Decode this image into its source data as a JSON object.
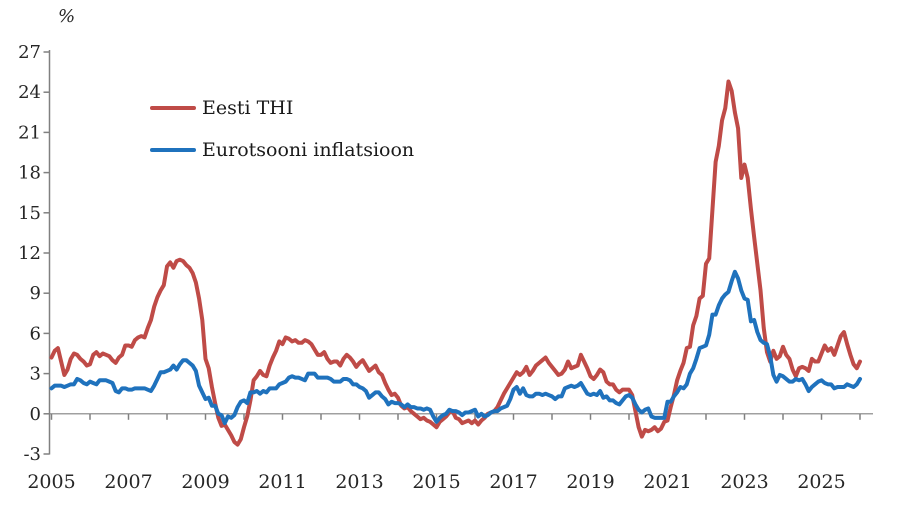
{
  "chart_data": {
    "type": "line",
    "title": "",
    "ylabel": "%",
    "xlabel": "",
    "ylim": [
      -3,
      27
    ],
    "ytick_step": 3,
    "yticks": [
      27,
      24,
      21,
      18,
      15,
      12,
      9,
      6,
      3,
      0,
      -3
    ],
    "xtick_labels": [
      2005,
      2007,
      2009,
      2011,
      2013,
      2015,
      2017,
      2019,
      2021,
      2023,
      2025
    ],
    "x_minor_tick_years": [
      2005,
      2006,
      2007,
      2008,
      2009,
      2010,
      2011,
      2012,
      2013,
      2014,
      2015,
      2016,
      2017,
      2018,
      2019,
      2020,
      2021,
      2022,
      2023,
      2024,
      2025,
      2026
    ],
    "frequency": "monthly",
    "start": "2005-01",
    "end": "2026-01",
    "grid": "zero-line-only",
    "legend_position": "top-left-inside",
    "axis_color": "#808080",
    "text_color": "#262626",
    "series": [
      {
        "name": "Eesti THI",
        "color": "#bf4b47",
        "values": [
          4.2,
          4.7,
          4.9,
          3.9,
          2.9,
          3.3,
          4.1,
          4.5,
          4.4,
          4.1,
          3.9,
          3.6,
          3.7,
          4.4,
          4.6,
          4.3,
          4.5,
          4.4,
          4.3,
          4.0,
          3.8,
          4.2,
          4.4,
          5.1,
          5.1,
          5.0,
          5.5,
          5.7,
          5.8,
          5.7,
          6.4,
          7.0,
          8.0,
          8.7,
          9.2,
          9.6,
          11.0,
          11.3,
          10.9,
          11.4,
          11.5,
          11.4,
          11.1,
          10.9,
          10.5,
          9.8,
          8.6,
          7.0,
          4.1,
          3.4,
          2.0,
          0.8,
          -0.3,
          -0.9,
          -0.8,
          -1.2,
          -1.6,
          -2.1,
          -2.3,
          -1.9,
          -1.0,
          -0.2,
          1.0,
          2.5,
          2.8,
          3.2,
          2.9,
          2.8,
          3.6,
          4.2,
          4.7,
          5.4,
          5.2,
          5.7,
          5.6,
          5.4,
          5.5,
          5.3,
          5.3,
          5.5,
          5.4,
          5.2,
          4.8,
          4.4,
          4.4,
          4.6,
          4.1,
          3.8,
          3.9,
          3.9,
          3.6,
          4.1,
          4.4,
          4.2,
          3.9,
          3.5,
          3.8,
          4.0,
          3.6,
          3.2,
          3.4,
          3.6,
          3.1,
          2.9,
          2.3,
          1.8,
          1.4,
          1.5,
          1.2,
          0.6,
          0.4,
          0.5,
          0.2,
          0.0,
          -0.2,
          -0.4,
          -0.3,
          -0.5,
          -0.6,
          -0.8,
          -1.0,
          -0.6,
          -0.4,
          -0.2,
          0.1,
          0.2,
          -0.3,
          -0.4,
          -0.7,
          -0.6,
          -0.5,
          -0.7,
          -0.5,
          -0.8,
          -0.5,
          -0.3,
          0.0,
          0.1,
          0.2,
          0.5,
          1.0,
          1.5,
          1.9,
          2.3,
          2.7,
          3.1,
          2.9,
          3.1,
          3.5,
          2.9,
          3.2,
          3.6,
          3.8,
          4.0,
          4.2,
          3.8,
          3.5,
          3.2,
          2.9,
          3.0,
          3.3,
          3.9,
          3.4,
          3.5,
          3.6,
          4.4,
          3.9,
          3.4,
          2.8,
          2.6,
          2.9,
          3.3,
          3.1,
          2.4,
          2.2,
          2.2,
          1.8,
          1.6,
          1.8,
          1.8,
          1.8,
          1.4,
          0.2,
          -1.0,
          -1.7,
          -1.2,
          -1.3,
          -1.2,
          -1.0,
          -1.3,
          -1.1,
          -0.6,
          -0.5,
          0.5,
          1.4,
          2.5,
          3.2,
          3.8,
          4.9,
          5.0,
          6.6,
          7.3,
          8.6,
          8.8,
          11.2,
          11.6,
          15.2,
          18.8,
          20.0,
          21.9,
          22.8,
          24.8,
          24.1,
          22.5,
          21.3,
          17.6,
          18.6,
          17.6,
          15.3,
          13.2,
          11.2,
          9.2,
          6.4,
          4.6,
          3.9,
          4.7,
          4.1,
          4.3,
          5.0,
          4.4,
          4.1,
          3.3,
          2.8,
          3.4,
          3.5,
          3.4,
          3.2,
          4.1,
          3.9,
          3.9,
          4.5,
          5.1,
          4.7,
          4.9,
          4.4,
          5.1,
          5.8,
          6.1,
          5.2,
          4.4,
          3.7,
          3.4,
          3.9
        ]
      },
      {
        "name": "Eurotsooni inflatsioon",
        "color": "#1f72bd",
        "values": [
          1.9,
          2.1,
          2.1,
          2.1,
          2.0,
          2.1,
          2.2,
          2.2,
          2.6,
          2.5,
          2.3,
          2.2,
          2.4,
          2.3,
          2.2,
          2.5,
          2.5,
          2.5,
          2.4,
          2.3,
          1.7,
          1.6,
          1.9,
          1.9,
          1.8,
          1.8,
          1.9,
          1.9,
          1.9,
          1.9,
          1.8,
          1.7,
          2.1,
          2.6,
          3.1,
          3.1,
          3.2,
          3.3,
          3.6,
          3.3,
          3.7,
          4.0,
          4.0,
          3.8,
          3.6,
          3.2,
          2.1,
          1.6,
          1.1,
          1.2,
          0.6,
          0.6,
          0.0,
          -0.1,
          -0.7,
          -0.2,
          -0.3,
          -0.1,
          0.5,
          0.9,
          1.0,
          0.8,
          1.6,
          1.6,
          1.7,
          1.5,
          1.7,
          1.6,
          1.9,
          1.9,
          1.9,
          2.2,
          2.3,
          2.4,
          2.7,
          2.8,
          2.7,
          2.7,
          2.6,
          2.5,
          3.0,
          3.0,
          3.0,
          2.7,
          2.7,
          2.7,
          2.7,
          2.6,
          2.4,
          2.4,
          2.4,
          2.6,
          2.6,
          2.5,
          2.2,
          2.2,
          2.0,
          1.9,
          1.7,
          1.2,
          1.4,
          1.6,
          1.6,
          1.3,
          1.1,
          0.7,
          0.9,
          0.8,
          0.8,
          0.7,
          0.5,
          0.7,
          0.5,
          0.5,
          0.4,
          0.4,
          0.3,
          0.4,
          0.3,
          -0.2,
          -0.6,
          -0.3,
          -0.1,
          0.0,
          0.3,
          0.2,
          0.2,
          0.1,
          -0.1,
          0.1,
          0.1,
          0.2,
          0.3,
          -0.2,
          0.0,
          -0.2,
          -0.1,
          0.1,
          0.2,
          0.2,
          0.4,
          0.5,
          0.6,
          1.1,
          1.8,
          2.0,
          1.5,
          1.9,
          1.4,
          1.3,
          1.3,
          1.5,
          1.5,
          1.4,
          1.5,
          1.4,
          1.3,
          1.1,
          1.3,
          1.3,
          1.9,
          2.0,
          2.1,
          2.0,
          2.1,
          2.3,
          1.9,
          1.5,
          1.4,
          1.5,
          1.4,
          1.7,
          1.2,
          1.3,
          1.0,
          1.0,
          0.8,
          0.7,
          1.0,
          1.3,
          1.4,
          1.2,
          0.7,
          0.3,
          0.1,
          0.3,
          0.4,
          -0.2,
          -0.3,
          -0.3,
          -0.3,
          -0.3,
          0.9,
          0.9,
          1.3,
          1.6,
          2.0,
          1.9,
          2.2,
          3.0,
          3.4,
          4.1,
          4.9,
          5.0,
          5.1,
          5.9,
          7.4,
          7.4,
          8.1,
          8.6,
          8.9,
          9.1,
          9.9,
          10.6,
          10.1,
          9.2,
          8.6,
          8.5,
          6.9,
          7.0,
          6.1,
          5.5,
          5.3,
          5.2,
          4.3,
          2.9,
          2.4,
          2.9,
          2.8,
          2.6,
          2.4,
          2.4,
          2.6,
          2.5,
          2.6,
          2.2,
          1.7,
          2.0,
          2.2,
          2.4,
          2.5,
          2.3,
          2.2,
          2.2,
          1.9,
          2.0,
          2.0,
          2.0,
          2.2,
          2.1,
          2.0,
          2.2,
          2.6
        ]
      }
    ]
  }
}
